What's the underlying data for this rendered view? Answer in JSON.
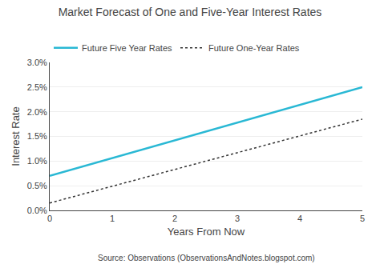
{
  "chart_data": {
    "type": "line",
    "title": "Market Forecast of One and Five-Year Interest Rates",
    "xlabel": "Years From Now",
    "ylabel": "Interest Rate",
    "annotation": "Source: Observations (ObservationsAndNotes.blogspot.com)",
    "x": [
      0,
      5
    ],
    "series": [
      {
        "name": "Future Five Year Rates",
        "color": "#29B8D4",
        "line_style": "solid",
        "values": [
          0.007,
          0.025
        ]
      },
      {
        "name": "Future One-Year Rates",
        "color": "#333333",
        "line_style": "dotted",
        "values": [
          0.0015,
          0.0185
        ]
      }
    ],
    "xlim": [
      0,
      5
    ],
    "xticks": [
      0,
      1,
      2,
      3,
      4,
      5
    ],
    "ylim": [
      0.0,
      0.03
    ],
    "yticks": [
      {
        "value": 0.0,
        "label": "0.0%"
      },
      {
        "value": 0.005,
        "label": "0.5%"
      },
      {
        "value": 0.01,
        "label": "1.0%"
      },
      {
        "value": 0.015,
        "label": "1.5%"
      },
      {
        "value": 0.02,
        "label": "2.0%"
      },
      {
        "value": 0.025,
        "label": "2.5%"
      },
      {
        "value": 0.03,
        "label": "3.0%"
      }
    ],
    "grid": "y",
    "legend": "top"
  }
}
